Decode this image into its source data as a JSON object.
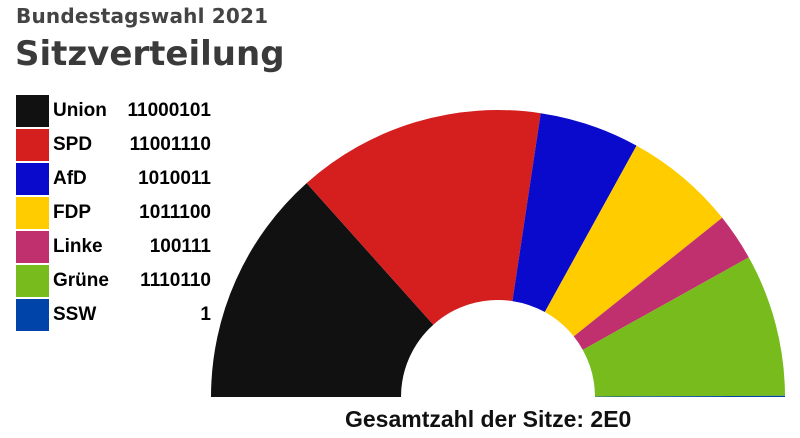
{
  "header": {
    "supertitle": "Bundestagswahl 2021",
    "title": "Sitzverteilung"
  },
  "total_label": "Gesamtzahl der Sitze: 2E0",
  "chart_data": {
    "type": "pie",
    "variant": "half-donut",
    "title": "Sitzverteilung",
    "categories": [
      "Union",
      "SPD",
      "AfD",
      "FDP",
      "Linke",
      "Grüne",
      "SSW"
    ],
    "seat_labels": [
      "11000101",
      "11001110",
      "1010011",
      "1011100",
      "100111",
      "1110110",
      "1"
    ],
    "values": [
      197,
      206,
      83,
      92,
      39,
      118,
      1
    ],
    "colors": [
      "#111111",
      "#d51f1f",
      "#0a0acd",
      "#ffcc00",
      "#c0306e",
      "#77bb1c",
      "#0044aa"
    ],
    "legend_position": "top-left"
  }
}
